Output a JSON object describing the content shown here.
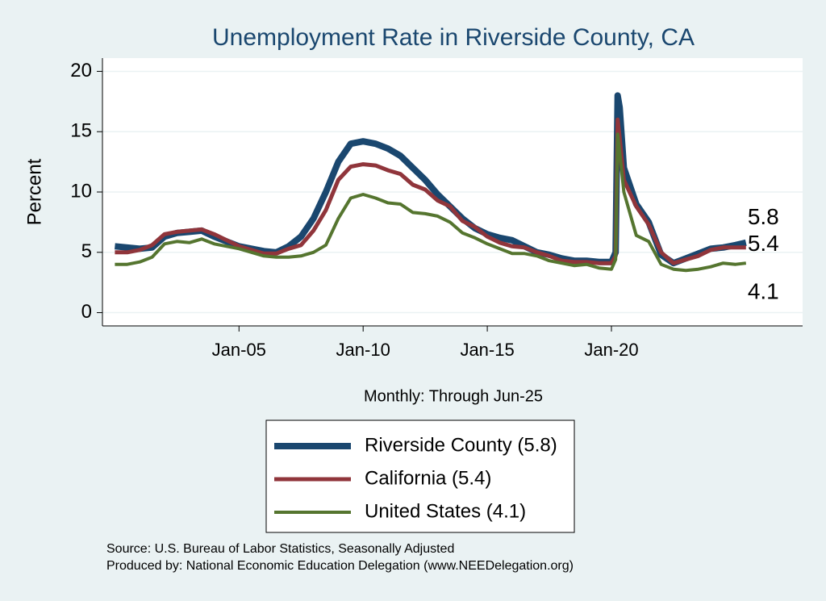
{
  "chart_data": {
    "type": "line",
    "title": "Unemployment Rate in Riverside  County, CA",
    "y_label": "Percent",
    "x_label": "Monthly: Through Jun-25",
    "notes": [
      "Source: U.S. Bureau of Labor Statistics, Seasonally Adjusted",
      "Produced by: National Economic Education Delegation (www.NEEDelegation.org)"
    ],
    "x": [
      2000,
      2000.5,
      2001,
      2001.5,
      2002,
      2002.5,
      2003,
      2003.5,
      2004,
      2004.5,
      2005,
      2005.5,
      2006,
      2006.5,
      2007,
      2007.5,
      2008,
      2008.5,
      2009,
      2009.5,
      2010,
      2010.5,
      2011,
      2011.5,
      2012,
      2012.5,
      2013,
      2013.5,
      2014,
      2014.5,
      2015,
      2015.5,
      2016,
      2016.5,
      2017,
      2017.5,
      2018,
      2018.5,
      2019,
      2019.5,
      2020,
      2020.17,
      2020.25,
      2020.33,
      2020.5,
      2021,
      2021.5,
      2022,
      2022.5,
      2023,
      2023.5,
      2024,
      2024.5,
      2025,
      2025.42
    ],
    "series": [
      {
        "name": "Riverside  County (5.8)",
        "color": "#1a476f",
        "width": 8,
        "values": [
          5.5,
          5.4,
          5.3,
          5.4,
          6.3,
          6.6,
          6.7,
          6.8,
          6.3,
          5.9,
          5.5,
          5.3,
          5.1,
          5.0,
          5.5,
          6.3,
          7.8,
          10,
          12.5,
          14.0,
          14.2,
          14.0,
          13.6,
          13.0,
          12.0,
          11.0,
          9.8,
          8.8,
          7.8,
          7.0,
          6.5,
          6.2,
          6.0,
          5.5,
          5.0,
          4.8,
          4.5,
          4.3,
          4.3,
          4.2,
          4.2,
          5.0,
          18.0,
          17.0,
          12,
          9.0,
          7.5,
          4.8,
          4.1,
          4.5,
          4.9,
          5.3,
          5.4,
          5.6,
          5.8
        ]
      },
      {
        "name": "California (5.4)",
        "color": "#90353b",
        "width": 5,
        "values": [
          5.0,
          5.0,
          5.2,
          5.6,
          6.5,
          6.7,
          6.8,
          6.9,
          6.5,
          6.0,
          5.5,
          5.2,
          4.9,
          4.9,
          5.3,
          5.6,
          6.8,
          8.5,
          11.0,
          12.1,
          12.3,
          12.2,
          11.8,
          11.5,
          10.6,
          10.2,
          9.3,
          8.8,
          7.6,
          7.1,
          6.3,
          5.8,
          5.5,
          5.4,
          5.0,
          4.7,
          4.3,
          4.2,
          4.2,
          4.1,
          4.1,
          4.7,
          16.0,
          14.5,
          11.0,
          8.8,
          7.3,
          5.0,
          4.1,
          4.4,
          4.7,
          5.2,
          5.4,
          5.4,
          5.4
        ]
      },
      {
        "name": "United States (4.1)",
        "color": "#55752f",
        "width": 4,
        "values": [
          4.0,
          4.0,
          4.2,
          4.6,
          5.7,
          5.9,
          5.8,
          6.1,
          5.7,
          5.5,
          5.3,
          5.0,
          4.7,
          4.6,
          4.6,
          4.7,
          5.0,
          5.6,
          7.8,
          9.5,
          9.8,
          9.5,
          9.1,
          9.0,
          8.3,
          8.2,
          8.0,
          7.5,
          6.6,
          6.2,
          5.7,
          5.3,
          4.9,
          4.9,
          4.7,
          4.3,
          4.1,
          3.9,
          4.0,
          3.7,
          3.6,
          4.4,
          14.8,
          13.3,
          10.0,
          6.4,
          5.9,
          4.0,
          3.6,
          3.5,
          3.6,
          3.8,
          4.1,
          4.0,
          4.1
        ]
      }
    ],
    "xlim": [
      1999.5,
      2027.7
    ],
    "xticks": [
      {
        "value": 2005,
        "label": "Jan-05"
      },
      {
        "value": 2010,
        "label": "Jan-10"
      },
      {
        "value": 2015,
        "label": "Jan-15"
      },
      {
        "value": 2020,
        "label": "Jan-20"
      }
    ],
    "ylim": [
      -1.1,
      21.1
    ],
    "yticks": [
      0,
      5,
      10,
      15,
      20
    ],
    "grid": true,
    "legend": "bottom"
  }
}
